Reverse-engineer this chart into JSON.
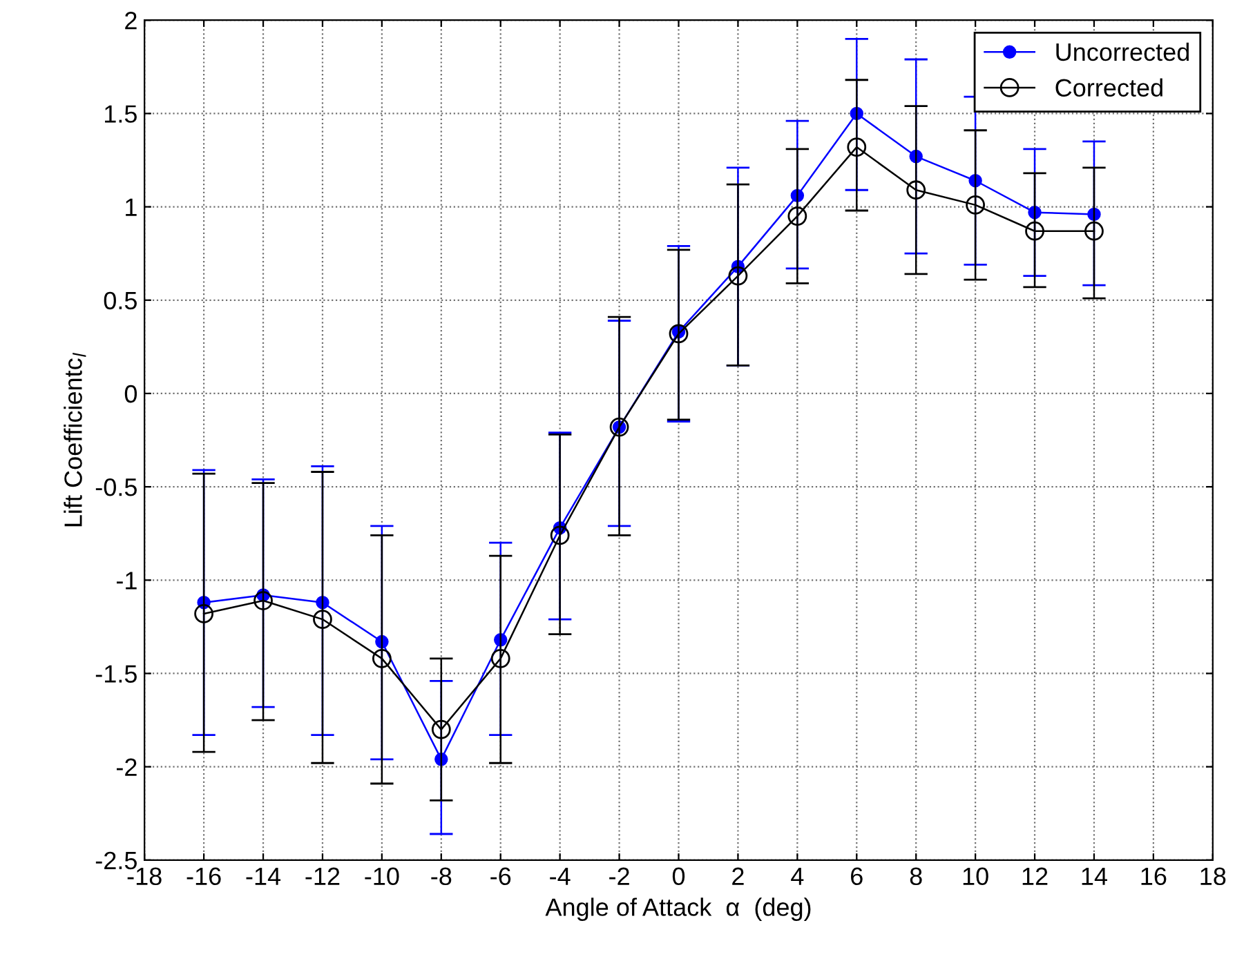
{
  "chart_data": {
    "type": "line",
    "xlabel": "Angle of Attack  α  (deg)",
    "ylabel": "Lift Coefficientc$_{l}$",
    "x": [
      -16,
      -14,
      -12,
      -10,
      -8,
      -6,
      -4,
      -2,
      0,
      2,
      4,
      6,
      8,
      10,
      12,
      14
    ],
    "xlim": [
      -18,
      18
    ],
    "xticks": [
      -18,
      -16,
      -14,
      -12,
      -10,
      -8,
      -6,
      -4,
      -2,
      0,
      2,
      4,
      6,
      8,
      10,
      12,
      14,
      16,
      18
    ],
    "ylim": [
      -2.5,
      2
    ],
    "yticks": [
      -2.5,
      -2,
      -1.5,
      -1,
      -0.5,
      0,
      0.5,
      1,
      1.5,
      2
    ],
    "grid": true,
    "legend": "top right",
    "marker": "circle",
    "line_style": "solid",
    "series": [
      {
        "name": "Uncorrected",
        "color": "#0000ff",
        "values": [
          -1.12,
          -1.08,
          -1.12,
          -1.33,
          -1.96,
          -1.32,
          -0.72,
          -0.18,
          0.33,
          0.68,
          1.06,
          1.5,
          1.27,
          1.14,
          0.97,
          0.96
        ],
        "errors": [
          [
            -1.83,
            -0.41
          ],
          [
            -1.68,
            -0.46
          ],
          [
            -1.83,
            -0.39
          ],
          [
            -1.96,
            -0.71
          ],
          [
            -2.36,
            -1.54
          ],
          [
            -1.83,
            -0.8
          ],
          [
            -1.21,
            -0.21
          ],
          [
            -0.71,
            0.39
          ],
          [
            -0.15,
            0.79
          ],
          [
            0.15,
            1.21
          ],
          [
            0.67,
            1.46
          ],
          [
            1.09,
            1.9
          ],
          [
            0.75,
            1.79
          ],
          [
            0.69,
            1.59
          ],
          [
            0.63,
            1.31
          ],
          [
            0.58,
            1.35
          ]
        ]
      },
      {
        "name": "Corrected",
        "color": "#000000",
        "values": [
          -1.18,
          -1.11,
          -1.21,
          -1.42,
          -1.8,
          -1.42,
          -0.76,
          -0.18,
          0.32,
          0.63,
          0.95,
          1.32,
          1.09,
          1.01,
          0.87,
          0.87
        ],
        "errors": [
          [
            -1.92,
            -0.43
          ],
          [
            -1.75,
            -0.48
          ],
          [
            -1.98,
            -0.42
          ],
          [
            -2.09,
            -0.76
          ],
          [
            -2.18,
            -1.42
          ],
          [
            -1.98,
            -0.87
          ],
          [
            -1.29,
            -0.22
          ],
          [
            -0.76,
            0.41
          ],
          [
            -0.14,
            0.77
          ],
          [
            0.15,
            1.12
          ],
          [
            0.59,
            1.31
          ],
          [
            0.98,
            1.68
          ],
          [
            0.64,
            1.54
          ],
          [
            0.61,
            1.41
          ],
          [
            0.57,
            1.18
          ],
          [
            0.51,
            1.21
          ]
        ]
      }
    ]
  }
}
